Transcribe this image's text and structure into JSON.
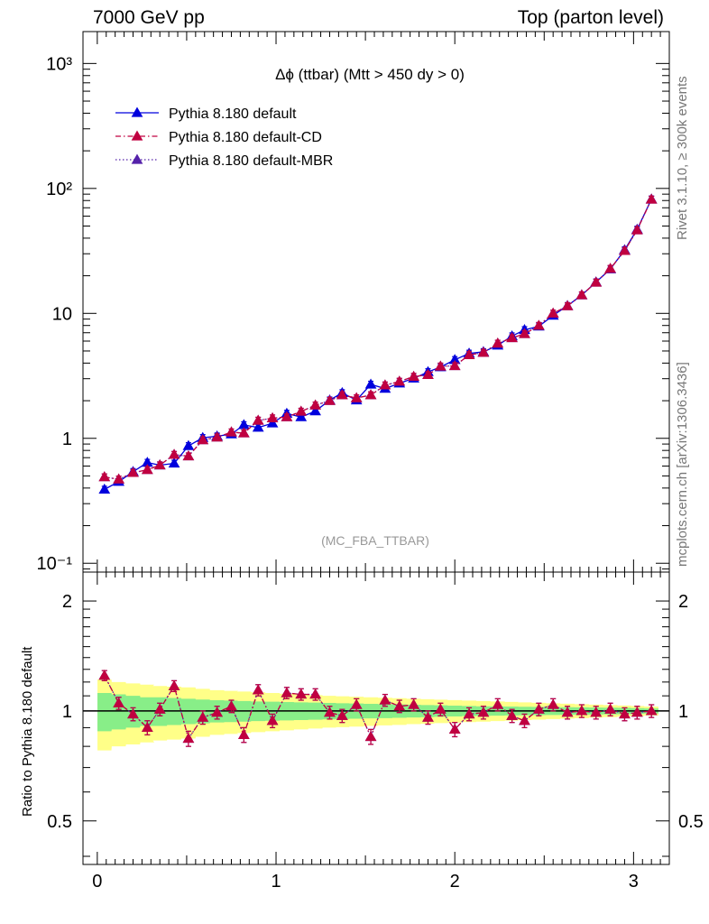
{
  "header": {
    "left": "7000 GeV pp",
    "right": "Top (parton level)"
  },
  "side_text": {
    "rivet": "Rivet 3.1.10, ≥ 300k events",
    "mcplots": "mcplots.cern.ch [arXiv:1306.3436]"
  },
  "main": {
    "title": "Δϕ (ttbar) (Mtt > 450 dy > 0)",
    "watermark": "(MC_FBA_TTBAR)"
  },
  "ratio": {
    "ylabel": "Ratio to Pythia 8.180 default"
  },
  "chart_data": [
    {
      "type": "line",
      "yscale": "log",
      "xlim": [
        -0.08,
        3.2
      ],
      "ylim": [
        0.085,
        1800
      ],
      "y_tick_labels": [
        "10⁻¹",
        "1",
        "10",
        "10²",
        "10³"
      ],
      "legend_position": "top-left",
      "x": [
        0.04,
        0.12,
        0.2,
        0.28,
        0.35,
        0.43,
        0.51,
        0.59,
        0.67,
        0.75,
        0.82,
        0.9,
        0.98,
        1.06,
        1.14,
        1.22,
        1.3,
        1.37,
        1.45,
        1.53,
        1.61,
        1.69,
        1.77,
        1.85,
        1.92,
        2.0,
        2.08,
        2.16,
        2.24,
        2.32,
        2.39,
        2.47,
        2.55,
        2.63,
        2.71,
        2.79,
        2.87,
        2.95,
        3.02,
        3.1
      ],
      "series": [
        {
          "name": "Pythia 8.180 default",
          "color": "#0000dd",
          "line": "solid",
          "values": [
            0.39,
            0.45,
            0.54,
            0.64,
            0.61,
            0.63,
            0.87,
            1.01,
            1.04,
            1.08,
            1.28,
            1.22,
            1.32,
            1.58,
            1.48,
            1.65,
            2.02,
            2.31,
            2.02,
            2.7,
            2.5,
            2.76,
            3.02,
            3.4,
            3.72,
            4.25,
            4.78,
            4.92,
            5.55,
            6.58,
            7.38,
            7.88,
            9.62,
            11.5,
            14.0,
            17.8,
            22.6,
            32.2,
            47.0,
            82.0
          ]
        },
        {
          "name": "Pythia 8.180 default-CD",
          "color": "#c00040",
          "line": "dashdot",
          "values": [
            0.49,
            0.47,
            0.53,
            0.56,
            0.61,
            0.74,
            0.72,
            0.97,
            1.02,
            1.12,
            1.1,
            1.39,
            1.45,
            1.48,
            1.64,
            1.84,
            2.0,
            2.22,
            2.1,
            2.22,
            2.66,
            2.85,
            3.12,
            3.22,
            3.77,
            3.8,
            4.65,
            4.85,
            5.75,
            6.36,
            6.86,
            7.97,
            10.0,
            11.45,
            14.0,
            17.7,
            22.8,
            31.7,
            46.4,
            81.7
          ]
        },
        {
          "name": "Pythia 8.180 default-MBR",
          "color": "#5522aa",
          "line": "dotted",
          "values": [
            0.49,
            0.47,
            0.53,
            0.56,
            0.61,
            0.74,
            0.72,
            0.97,
            1.02,
            1.12,
            1.1,
            1.39,
            1.45,
            1.48,
            1.64,
            1.84,
            2.0,
            2.22,
            2.1,
            2.22,
            2.66,
            2.85,
            3.12,
            3.22,
            3.77,
            3.8,
            4.65,
            4.85,
            5.75,
            6.36,
            6.86,
            7.97,
            10.0,
            11.45,
            14.0,
            17.7,
            22.8,
            31.7,
            46.4,
            81.7
          ]
        }
      ]
    },
    {
      "type": "line",
      "xlim": [
        -0.08,
        3.2
      ],
      "ylim": [
        0.38,
        2.4
      ],
      "x_tick_labels": [
        "0",
        "1",
        "2",
        "3"
      ],
      "y_tick_labels": [
        "0.5",
        "1",
        "2"
      ],
      "band_inner": [
        0.12,
        0.11,
        0.1,
        0.09,
        0.09,
        0.085,
        0.08,
        0.075,
        0.07,
        0.068,
        0.065,
        0.062,
        0.06,
        0.058,
        0.056,
        0.054,
        0.052,
        0.05,
        0.048,
        0.046,
        0.044,
        0.042,
        0.04,
        0.038,
        0.036,
        0.034,
        0.032,
        0.03,
        0.029,
        0.028,
        0.027,
        0.026,
        0.025,
        0.024,
        0.023,
        0.022,
        0.021,
        0.02,
        0.018,
        0.016
      ],
      "band_outer": [
        0.22,
        0.2,
        0.19,
        0.18,
        0.17,
        0.165,
        0.16,
        0.15,
        0.14,
        0.135,
        0.13,
        0.125,
        0.12,
        0.115,
        0.11,
        0.105,
        0.1,
        0.097,
        0.094,
        0.09,
        0.087,
        0.084,
        0.08,
        0.077,
        0.074,
        0.071,
        0.068,
        0.065,
        0.062,
        0.059,
        0.056,
        0.053,
        0.05,
        0.047,
        0.044,
        0.041,
        0.038,
        0.035,
        0.032,
        0.028
      ],
      "series": [
        {
          "name": "Pythia 8.180 default-CD",
          "color": "#c00040",
          "line": "dashdot",
          "values": [
            1.25,
            1.05,
            0.98,
            0.9,
            1.01,
            1.17,
            0.84,
            0.96,
            0.99,
            1.03,
            0.86,
            1.14,
            0.94,
            1.12,
            1.11,
            1.11,
            0.99,
            0.97,
            1.04,
            0.85,
            1.07,
            1.03,
            1.04,
            0.96,
            1.01,
            0.89,
            0.98,
            0.99,
            1.04,
            0.97,
            0.94,
            1.01,
            1.04,
            0.99,
            1.0,
            0.99,
            1.01,
            0.98,
            0.99,
            1.0
          ]
        },
        {
          "name": "Pythia 8.180 default-MBR",
          "color": "#5522aa",
          "line": "dotted",
          "values": [
            1.25,
            1.05,
            0.98,
            0.9,
            1.01,
            1.17,
            0.84,
            0.96,
            0.99,
            1.03,
            0.86,
            1.14,
            0.94,
            1.12,
            1.11,
            1.11,
            0.99,
            0.97,
            1.04,
            0.85,
            1.07,
            1.03,
            1.04,
            0.96,
            1.01,
            0.89,
            0.98,
            0.99,
            1.04,
            0.97,
            0.94,
            1.01,
            1.04,
            0.99,
            1.0,
            0.99,
            1.01,
            0.98,
            0.99,
            1.0
          ]
        }
      ]
    }
  ]
}
